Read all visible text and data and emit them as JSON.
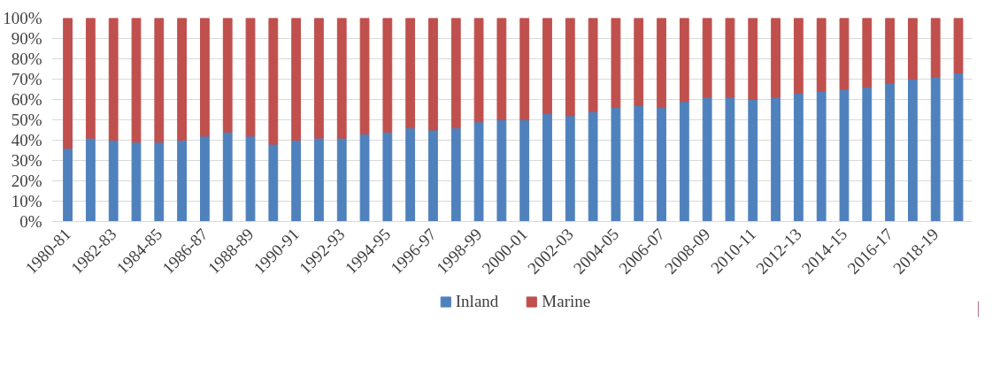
{
  "chart_data": {
    "type": "bar",
    "stacked": true,
    "categories": [
      "1980-81",
      null,
      "1982-83",
      null,
      "1984-85",
      null,
      "1986-87",
      null,
      "1988-89",
      null,
      "1990-91",
      null,
      "1992-93",
      null,
      "1994-95",
      null,
      "1996-97",
      null,
      "1998-99",
      null,
      "2000-01",
      null,
      "2002-03",
      null,
      "2004-05",
      null,
      "2006-07",
      null,
      "2008-09",
      null,
      "2010-11",
      null,
      "2012-13",
      null,
      "2014-15",
      null,
      "2016-17",
      null,
      "2018-19",
      null
    ],
    "series": [
      {
        "name": "Inland",
        "color": "#4f81bd",
        "values": [
          36,
          41,
          40,
          39,
          39,
          40,
          42,
          44,
          42,
          38,
          40,
          41,
          41,
          43,
          44,
          46,
          45,
          46,
          49,
          50,
          50,
          53,
          52,
          54,
          56,
          57,
          56,
          59,
          61,
          61,
          60,
          61,
          63,
          64,
          65,
          66,
          68,
          70,
          71,
          73
        ]
      },
      {
        "name": "Marine",
        "color": "#c0504d",
        "values": [
          64,
          59,
          60,
          61,
          61,
          60,
          58,
          56,
          58,
          62,
          60,
          59,
          59,
          57,
          56,
          54,
          55,
          54,
          51,
          50,
          50,
          47,
          48,
          46,
          44,
          43,
          44,
          41,
          39,
          39,
          40,
          39,
          37,
          36,
          35,
          34,
          32,
          30,
          29,
          27
        ]
      }
    ],
    "ylim": [
      0,
      100
    ],
    "yticks": [
      {
        "value": 0,
        "label": "0%"
      },
      {
        "value": 10,
        "label": "10%"
      },
      {
        "value": 20,
        "label": "20%"
      },
      {
        "value": 30,
        "label": "30%"
      },
      {
        "value": 40,
        "label": "40%"
      },
      {
        "value": 50,
        "label": "50%"
      },
      {
        "value": 60,
        "label": "60%"
      },
      {
        "value": 70,
        "label": "70%"
      },
      {
        "value": 80,
        "label": "80%"
      },
      {
        "value": 90,
        "label": "90%"
      },
      {
        "value": 100,
        "label": "100%"
      }
    ],
    "grid": "y",
    "legend": "bottom"
  }
}
